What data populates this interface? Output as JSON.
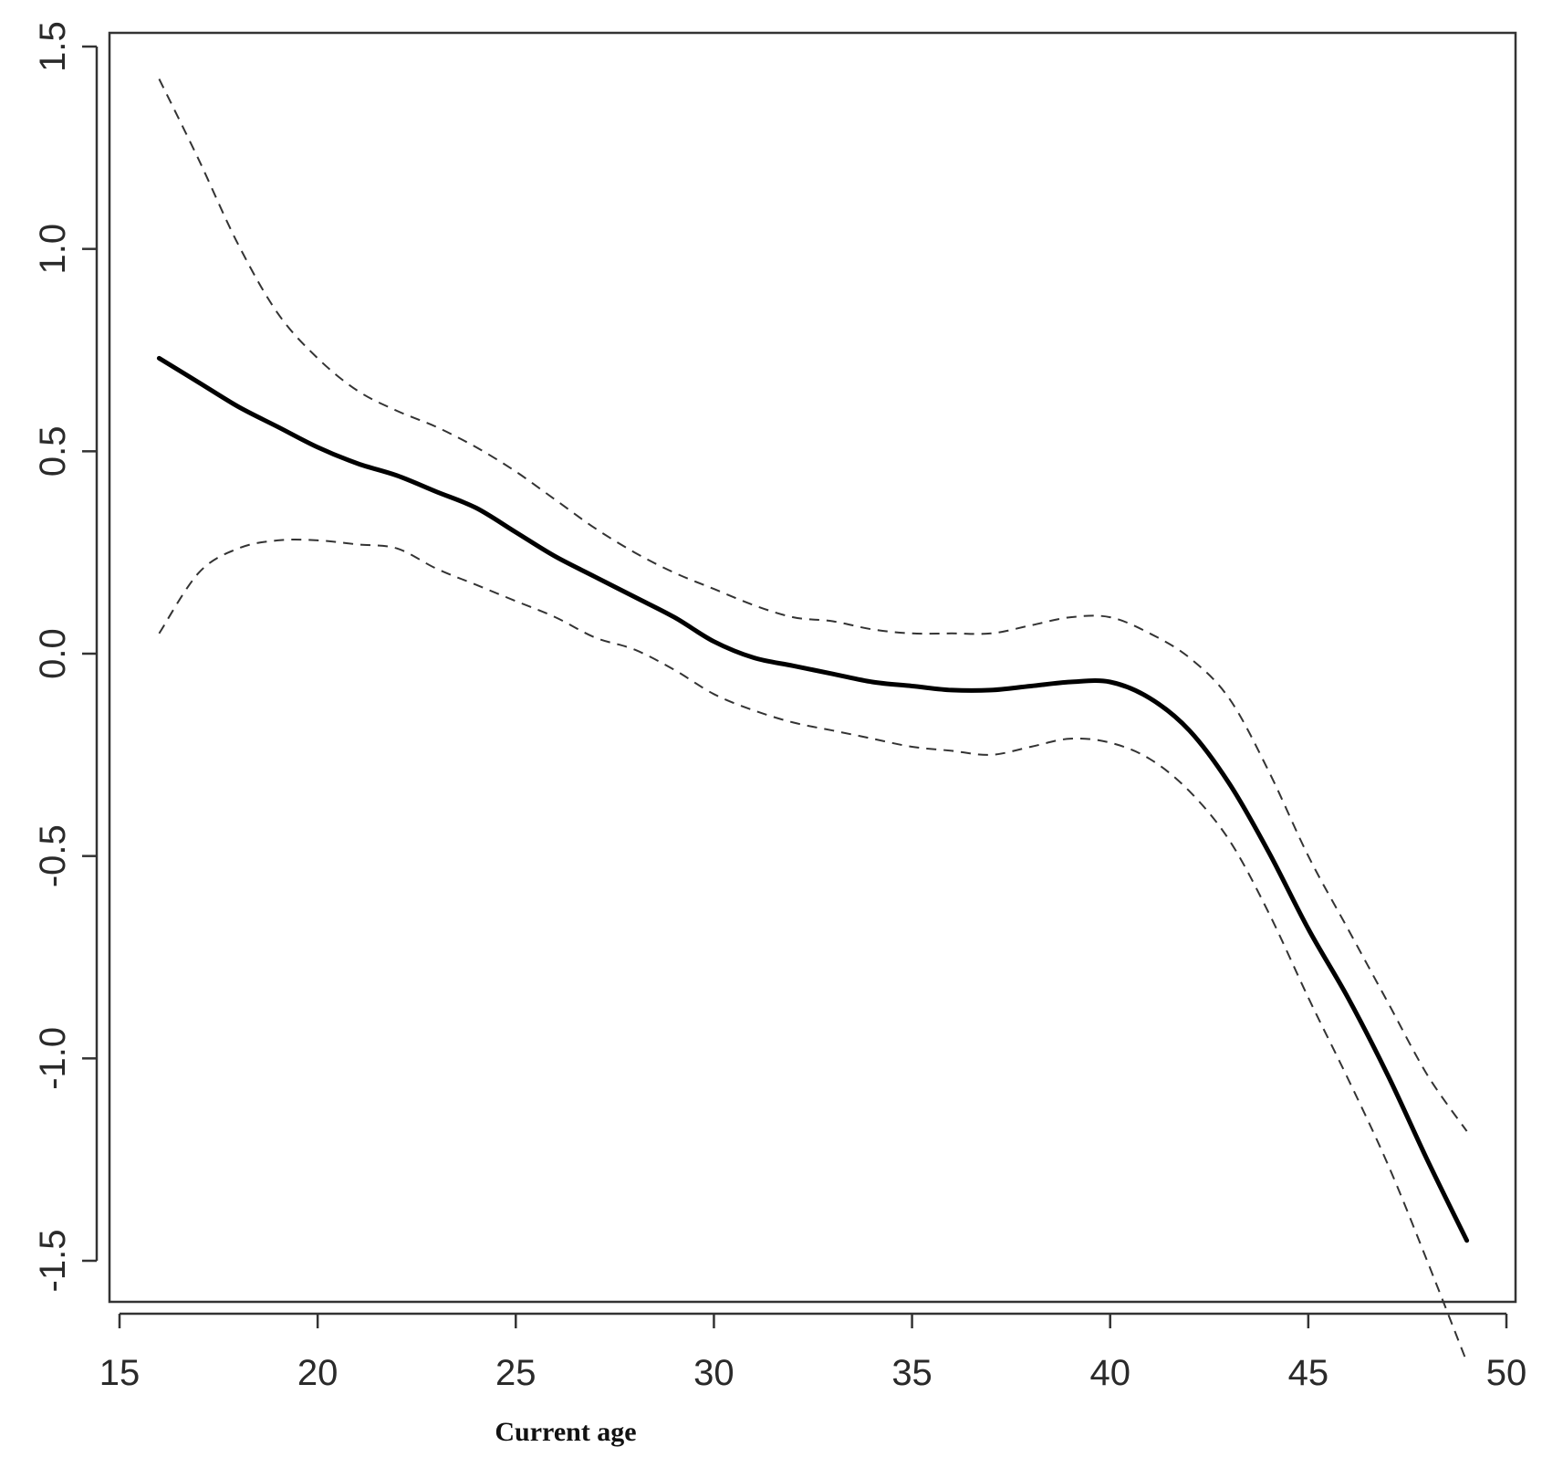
{
  "chart_data": {
    "type": "line",
    "title": "",
    "xlabel": "Current age",
    "ylabel": "",
    "xlim": [
      15,
      50
    ],
    "ylim": [
      -1.5,
      1.5
    ],
    "xticks": [
      "15",
      "20",
      "25",
      "30",
      "35",
      "40",
      "45",
      "50"
    ],
    "yticks": [
      "-1.5",
      "-1.0",
      "-0.5",
      "0.0",
      "0.5",
      "1.0",
      "1.5"
    ],
    "grid": false,
    "legend": "none",
    "series": [
      {
        "style": "solid",
        "color": "#000000",
        "x": [
          16,
          17,
          18,
          19,
          20,
          21,
          22,
          23,
          24,
          25,
          26,
          27,
          28,
          29,
          30,
          31,
          32,
          33,
          34,
          35,
          36,
          37,
          38,
          39,
          40,
          41,
          42,
          43,
          44,
          45,
          46,
          47,
          48,
          49
        ],
        "y": [
          0.73,
          0.67,
          0.61,
          0.56,
          0.51,
          0.47,
          0.44,
          0.4,
          0.36,
          0.3,
          0.24,
          0.19,
          0.14,
          0.09,
          0.03,
          -0.01,
          -0.03,
          -0.05,
          -0.07,
          -0.08,
          -0.09,
          -0.09,
          -0.08,
          -0.07,
          -0.07,
          -0.11,
          -0.19,
          -0.32,
          -0.49,
          -0.68,
          -0.85,
          -1.04,
          -1.25,
          -1.45
        ]
      },
      {
        "style": "dashed",
        "color": "#333333",
        "x": [
          16,
          17,
          18,
          19,
          20,
          21,
          22,
          23,
          24,
          25,
          26,
          27,
          28,
          29,
          30,
          31,
          32,
          33,
          34,
          35,
          36,
          37,
          38,
          39,
          40,
          41,
          42,
          43,
          44,
          45,
          46,
          47,
          48,
          49
        ],
        "y": [
          1.42,
          1.22,
          1.01,
          0.84,
          0.73,
          0.65,
          0.6,
          0.56,
          0.51,
          0.45,
          0.38,
          0.31,
          0.25,
          0.2,
          0.16,
          0.12,
          0.09,
          0.08,
          0.06,
          0.05,
          0.05,
          0.05,
          0.07,
          0.09,
          0.09,
          0.05,
          -0.01,
          -0.11,
          -0.29,
          -0.5,
          -0.68,
          -0.86,
          -1.04,
          -1.18
        ]
      },
      {
        "style": "dashed",
        "color": "#333333",
        "x": [
          16,
          17,
          18,
          19,
          20,
          21,
          22,
          23,
          24,
          25,
          26,
          27,
          28,
          29,
          30,
          31,
          32,
          33,
          34,
          35,
          36,
          37,
          38,
          39,
          40,
          41,
          42,
          43,
          44,
          45,
          46,
          47,
          48,
          49
        ],
        "y": [
          0.05,
          0.2,
          0.26,
          0.28,
          0.28,
          0.27,
          0.26,
          0.21,
          0.17,
          0.13,
          0.09,
          0.04,
          0.01,
          -0.04,
          -0.1,
          -0.14,
          -0.17,
          -0.19,
          -0.21,
          -0.23,
          -0.24,
          -0.25,
          -0.23,
          -0.21,
          -0.22,
          -0.26,
          -0.34,
          -0.46,
          -0.64,
          -0.85,
          -1.05,
          -1.26,
          -1.5,
          -1.75
        ]
      }
    ]
  }
}
